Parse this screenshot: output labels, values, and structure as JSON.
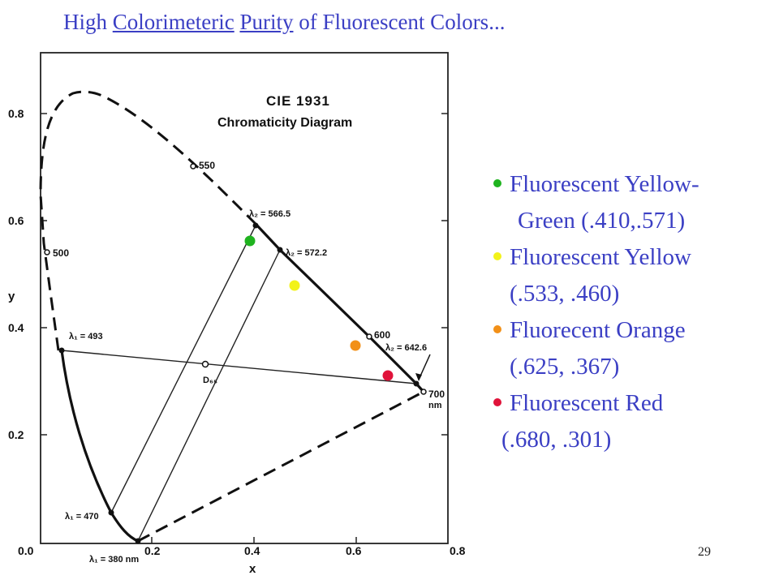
{
  "title": {
    "prefix": "High ",
    "word1": "Colorimeteric",
    "space1": " ",
    "word2": "Purity",
    "suffix": " of Fluorescent  Colors..."
  },
  "diagram": {
    "heading_line1": "CIE 1931",
    "heading_line2": "Chromaticity Diagram",
    "x_axis_label": "x",
    "y_axis_label": "y",
    "x_ticks": [
      "0.0",
      "0.2",
      "0.4",
      "0.6",
      "0.8"
    ],
    "y_ticks": [
      "0.2",
      "0.4",
      "0.6",
      "0.8"
    ],
    "wavelength_labels": {
      "w500": "500",
      "w550": "550",
      "w600": "600",
      "w700": "700",
      "nm_unit": "nm",
      "lambda2_5665": "λ₂ = 566.5",
      "lambda2_5722": "λ₂ = 572.2",
      "lambda2_6426": "λ₂ = 642.6",
      "lambda1_493": "λ₁ = 493",
      "lambda1_470": "λ₁ = 470",
      "lambda1_380": "λ₁ = 380 nm",
      "d65": "D₆₅"
    }
  },
  "legend": [
    {
      "name": "Fluorescent  Yellow-",
      "coord": "Green (.410,.571)",
      "color": "#1fb31f"
    },
    {
      "name": "Fluorescent Yellow",
      "coord": "(.533, .460)",
      "color": "#f2f21a"
    },
    {
      "name": "Fluorecent Orange",
      "coord": "(.625, .367)",
      "color": "#f29018"
    },
    {
      "name": "Fluorescent Red",
      "coord": "(.680, .301)",
      "color": "#e0133a"
    }
  ],
  "page_number": "29"
}
